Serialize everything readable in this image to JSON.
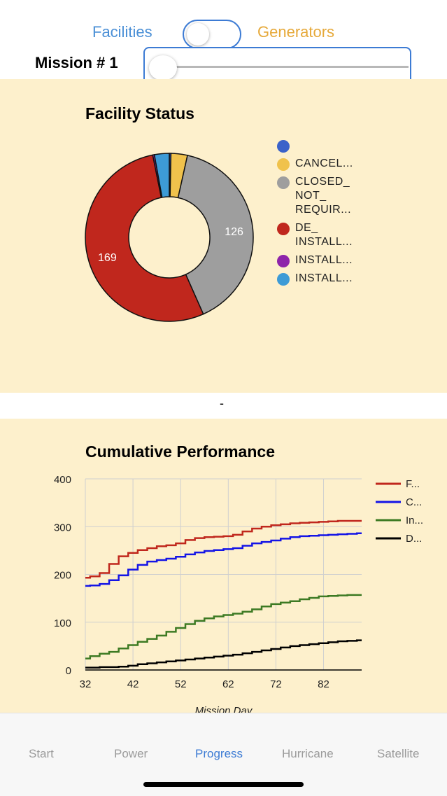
{
  "segment": {
    "left_label": "Facilities",
    "right_label": "Generators"
  },
  "mission": {
    "label": "Mission # 1"
  },
  "facility_status": {
    "title": "Facility Status",
    "legend": [
      {
        "label": "",
        "color": "#3a62c9"
      },
      {
        "label": "CANCEL...",
        "color": "#f0c24c"
      },
      {
        "label": "CLOSED_\nNOT_\nREQUIR...",
        "color": "#9e9e9e"
      },
      {
        "label": "DE_\nINSTALL...",
        "color": "#c0271d"
      },
      {
        "label": "INSTALL...",
        "color": "#8e24aa"
      },
      {
        "label": "INSTALL...",
        "color": "#3d9bd6"
      }
    ]
  },
  "separator": "-",
  "cumulative": {
    "title": "Cumulative Performance"
  },
  "chart_data": [
    {
      "type": "pie",
      "title": "Facility Status",
      "donut": true,
      "labels": [
        "",
        "CANCEL...",
        "CLOSED_ NOT_ REQUIR...",
        "DE_ INSTALL...",
        "INSTALL...",
        "INSTALL..."
      ],
      "values": [
        1,
        10,
        126,
        169,
        1,
        9
      ],
      "data_labels": [
        "",
        "",
        "126",
        "169",
        "",
        ""
      ],
      "colors": [
        "#3a62c9",
        "#f0c24c",
        "#9e9e9e",
        "#c0271d",
        "#8e24aa",
        "#3d9bd6"
      ],
      "legend": "right"
    },
    {
      "type": "line",
      "title": "Cumulative Performance",
      "xlabel": "Mission Day",
      "ylabel": "",
      "xlim": [
        32,
        90
      ],
      "ylim": [
        0,
        400
      ],
      "x_ticks": [
        32,
        42,
        52,
        62,
        72,
        82
      ],
      "y_ticks": [
        0,
        100,
        200,
        300,
        400
      ],
      "grid": true,
      "legend": "right",
      "x": [
        32,
        34,
        36,
        38,
        40,
        42,
        44,
        46,
        48,
        50,
        52,
        54,
        56,
        58,
        60,
        62,
        64,
        66,
        68,
        70,
        72,
        74,
        76,
        78,
        80,
        82,
        84,
        86,
        88,
        90
      ],
      "series": [
        {
          "name": "F...",
          "color": "#c0271d",
          "values": [
            193,
            196,
            203,
            222,
            238,
            245,
            251,
            255,
            259,
            261,
            265,
            272,
            276,
            278,
            279,
            280,
            283,
            290,
            296,
            300,
            303,
            305,
            307,
            308,
            309,
            310,
            311,
            312,
            312,
            312
          ]
        },
        {
          "name": "C...",
          "color": "#1414e6",
          "values": [
            176,
            177,
            180,
            188,
            198,
            210,
            220,
            227,
            230,
            233,
            237,
            242,
            246,
            249,
            251,
            253,
            255,
            260,
            265,
            268,
            271,
            275,
            278,
            280,
            281,
            282,
            283,
            284,
            285,
            286
          ]
        },
        {
          "name": "In...",
          "color": "#3d7a23",
          "values": [
            24,
            29,
            34,
            38,
            45,
            52,
            59,
            65,
            72,
            80,
            88,
            96,
            103,
            108,
            112,
            115,
            118,
            122,
            127,
            133,
            138,
            141,
            144,
            148,
            151,
            154,
            155,
            156,
            157,
            157
          ]
        },
        {
          "name": "D...",
          "color": "#000000",
          "values": [
            5,
            5,
            6,
            6,
            7,
            9,
            12,
            14,
            16,
            18,
            20,
            22,
            24,
            26,
            28,
            30,
            32,
            35,
            38,
            41,
            44,
            47,
            50,
            52,
            54,
            56,
            58,
            60,
            61,
            62
          ]
        }
      ]
    }
  ],
  "tabs": [
    {
      "label": "Start",
      "active": false
    },
    {
      "label": "Power",
      "active": false
    },
    {
      "label": "Progress",
      "active": true
    },
    {
      "label": "Hurricane",
      "active": false
    },
    {
      "label": "Satellite",
      "active": false
    }
  ],
  "colors": {
    "accent": "#3c7bd4",
    "panel_bg": "#fdf0cc",
    "generators": "#e6a93a"
  }
}
